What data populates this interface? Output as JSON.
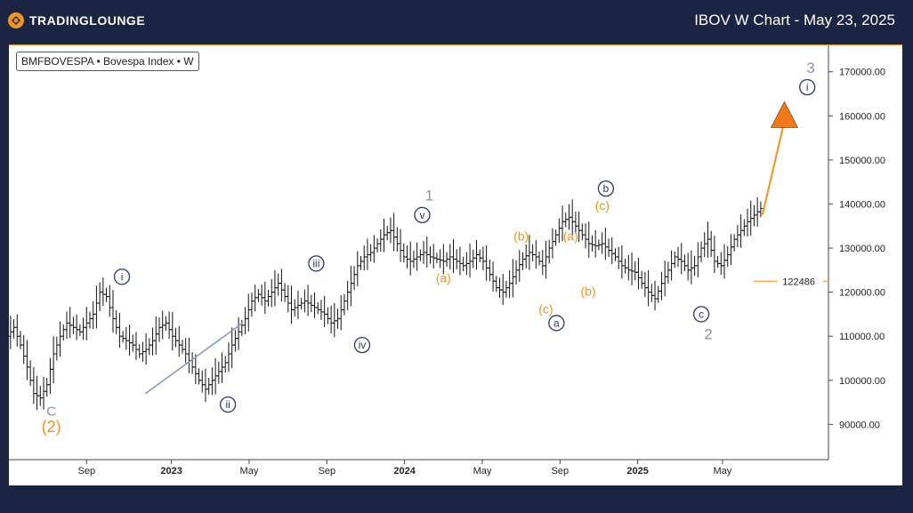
{
  "header": {
    "brand": "TRADINGLOUNGE",
    "title": "IBOV W Chart - May 23, 2025",
    "accent_color": "#f29421",
    "background_color": "#1b2440"
  },
  "symbol_label": "BMFBOVESPA • Bovespa Index • W",
  "chart_data": {
    "type": "candlestick",
    "x_ticks": [
      "Sep",
      "2023",
      "May",
      "Sep",
      "2024",
      "May",
      "Sep",
      "2025",
      "May"
    ],
    "bold_x_ticks": [
      "2023",
      "2024",
      "2025"
    ],
    "y_ticks": [
      90000,
      100000,
      110000,
      120000,
      130000,
      140000,
      150000,
      160000,
      170000
    ],
    "y_tick_labels": [
      "90000.00",
      "100000.00",
      "110000.00",
      "120000.00",
      "130000.00",
      "140000.00",
      "150000.00",
      "160000.00",
      "170000.00"
    ],
    "ylim": [
      82000,
      176000
    ],
    "price_line_label": "122486",
    "price_line_value": 122486,
    "price_path": [
      [
        0,
        110000
      ],
      [
        3,
        112000
      ],
      [
        6,
        108000
      ],
      [
        9,
        103000
      ],
      [
        12,
        97000
      ],
      [
        15,
        96000
      ],
      [
        18,
        99000
      ],
      [
        21,
        106000
      ],
      [
        24,
        110000
      ],
      [
        27,
        113000
      ],
      [
        30,
        112000
      ],
      [
        33,
        111000
      ],
      [
        36,
        113000
      ],
      [
        39,
        115000
      ],
      [
        42,
        120000
      ],
      [
        45,
        119000
      ],
      [
        48,
        114000
      ],
      [
        51,
        110000
      ],
      [
        54,
        109000
      ],
      [
        57,
        108000
      ],
      [
        60,
        106000
      ],
      [
        63,
        107000
      ],
      [
        66,
        109000
      ],
      [
        69,
        112000
      ],
      [
        72,
        113000
      ],
      [
        75,
        110000
      ],
      [
        78,
        108000
      ],
      [
        81,
        106000
      ],
      [
        84,
        103000
      ],
      [
        87,
        100000
      ],
      [
        90,
        98000
      ],
      [
        93,
        100000
      ],
      [
        96,
        102000
      ],
      [
        99,
        104000
      ],
      [
        102,
        108000
      ],
      [
        105,
        111000
      ],
      [
        108,
        114000
      ],
      [
        111,
        118000
      ],
      [
        114,
        119500
      ],
      [
        117,
        118000
      ],
      [
        120,
        120000
      ],
      [
        123,
        122000
      ],
      [
        126,
        119000
      ],
      [
        129,
        116000
      ],
      [
        132,
        117000
      ],
      [
        135,
        118000
      ],
      [
        138,
        117000
      ],
      [
        141,
        116000
      ],
      [
        144,
        115000
      ],
      [
        147,
        113000
      ],
      [
        150,
        114000
      ],
      [
        153,
        118000
      ],
      [
        156,
        122000
      ],
      [
        159,
        126000
      ],
      [
        162,
        128000
      ],
      [
        165,
        129000
      ],
      [
        168,
        131000
      ],
      [
        171,
        133000
      ],
      [
        174,
        134000
      ],
      [
        177,
        131000
      ],
      [
        180,
        128000
      ],
      [
        183,
        127000
      ],
      [
        186,
        128000
      ],
      [
        189,
        129000
      ],
      [
        192,
        128000
      ],
      [
        195,
        127500
      ],
      [
        198,
        127000
      ],
      [
        201,
        128000
      ],
      [
        204,
        127000
      ],
      [
        207,
        126000
      ],
      [
        210,
        127000
      ],
      [
        213,
        128500
      ],
      [
        216,
        127000
      ],
      [
        219,
        124000
      ],
      [
        222,
        121000
      ],
      [
        225,
        120000
      ],
      [
        228,
        122000
      ],
      [
        231,
        125000
      ],
      [
        234,
        127500
      ],
      [
        237,
        129000
      ],
      [
        240,
        128000
      ],
      [
        243,
        126000
      ],
      [
        246,
        130000
      ],
      [
        249,
        133000
      ],
      [
        252,
        136000
      ],
      [
        255,
        137000
      ],
      [
        258,
        135000
      ],
      [
        261,
        133000
      ],
      [
        264,
        131000
      ],
      [
        267,
        130500
      ],
      [
        270,
        131000
      ],
      [
        273,
        129500
      ],
      [
        276,
        128000
      ],
      [
        279,
        126000
      ],
      [
        282,
        125000
      ],
      [
        285,
        124500
      ],
      [
        288,
        122000
      ],
      [
        291,
        120000
      ],
      [
        294,
        118500
      ],
      [
        297,
        122000
      ],
      [
        300,
        125000
      ],
      [
        303,
        128000
      ],
      [
        306,
        127000
      ],
      [
        309,
        125000
      ],
      [
        312,
        126000
      ],
      [
        315,
        130000
      ],
      [
        318,
        132000
      ],
      [
        321,
        127000
      ],
      [
        324,
        126000
      ],
      [
        327,
        128500
      ],
      [
        330,
        132000
      ],
      [
        333,
        134000
      ],
      [
        336,
        136000
      ],
      [
        339,
        137500
      ],
      [
        342,
        139000
      ]
    ],
    "x_range": [
      0,
      372
    ],
    "x_tick_positions": [
      22,
      46,
      68,
      90,
      112,
      134,
      156,
      178,
      202
    ],
    "projection": {
      "from": [
        342,
        137500
      ],
      "to": [
        352,
        162000
      ]
    },
    "trendline": {
      "from": [
        62,
        97000
      ],
      "to": [
        106,
        113000
      ]
    },
    "wave_labels": [
      {
        "text": "C",
        "x": 12,
        "y": 93000,
        "style": "gray"
      },
      {
        "text": "(2)",
        "x": 12,
        "y": 89500,
        "style": "orange-big"
      },
      {
        "text": "i",
        "x": 32,
        "y": 123500,
        "style": "navy-circle"
      },
      {
        "text": "ii",
        "x": 62,
        "y": 94500,
        "style": "navy-circle"
      },
      {
        "text": "iii",
        "x": 87,
        "y": 126500,
        "style": "navy-circle"
      },
      {
        "text": "iv",
        "x": 100,
        "y": 108000,
        "style": "navy-circle"
      },
      {
        "text": "v",
        "x": 117,
        "y": 137500,
        "style": "navy-circle"
      },
      {
        "text": "1",
        "x": 119,
        "y": 142000,
        "style": "gray-big"
      },
      {
        "text": "(a)",
        "x": 123,
        "y": 123000,
        "style": "orange"
      },
      {
        "text": "(b)",
        "x": 145,
        "y": 132500,
        "style": "orange"
      },
      {
        "text": "(c)",
        "x": 152,
        "y": 116000,
        "style": "orange"
      },
      {
        "text": "a",
        "x": 155,
        "y": 113000,
        "style": "navy-circle"
      },
      {
        "text": "(a)",
        "x": 159,
        "y": 132500,
        "style": "orange"
      },
      {
        "text": "(b)",
        "x": 164,
        "y": 120000,
        "style": "orange"
      },
      {
        "text": "(c)",
        "x": 168,
        "y": 139500,
        "style": "orange"
      },
      {
        "text": "b",
        "x": 169,
        "y": 143500,
        "style": "navy-circle"
      },
      {
        "text": "c",
        "x": 196,
        "y": 115000,
        "style": "navy-circle"
      },
      {
        "text": "2",
        "x": 198,
        "y": 110500,
        "style": "gray-big"
      },
      {
        "text": "3",
        "x": 227,
        "y": 171000,
        "style": "gray-big"
      },
      {
        "text": "i",
        "x": 226,
        "y": 166500,
        "style": "navy-circle"
      }
    ]
  }
}
